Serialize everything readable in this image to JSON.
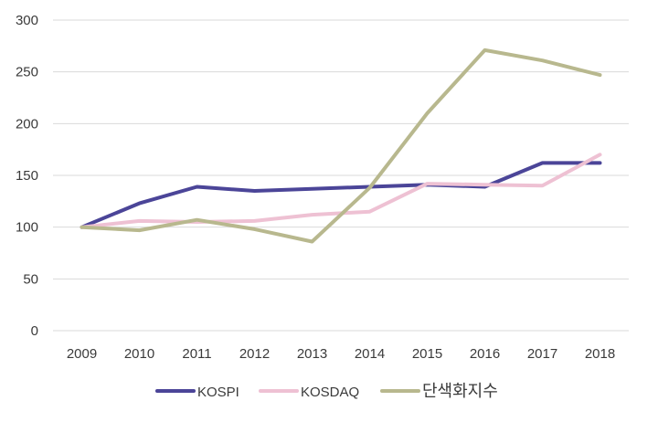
{
  "chart_data": {
    "type": "line",
    "title": "",
    "xlabel": "",
    "ylabel": "",
    "categories": [
      "2009",
      "2010",
      "2011",
      "2012",
      "2013",
      "2014",
      "2015",
      "2016",
      "2017",
      "2018"
    ],
    "ylim": [
      0,
      300
    ],
    "yticks": [
      0,
      50,
      100,
      150,
      200,
      250,
      300
    ],
    "grid": "horizontal",
    "legend": "bottom",
    "series": [
      {
        "name": "KOSPI",
        "color": "#4b4598",
        "values": [
          100,
          123,
          139,
          135,
          137,
          139,
          141,
          139,
          162,
          162
        ]
      },
      {
        "name": "KOSDAQ",
        "color": "#eec1d3",
        "values": [
          100,
          106,
          105,
          106,
          112,
          115,
          142,
          141,
          140,
          170
        ]
      },
      {
        "name": "단색화지수",
        "color": "#b8b88e",
        "values": [
          100,
          97,
          107,
          98,
          86,
          138,
          210,
          271,
          261,
          247
        ]
      }
    ]
  }
}
